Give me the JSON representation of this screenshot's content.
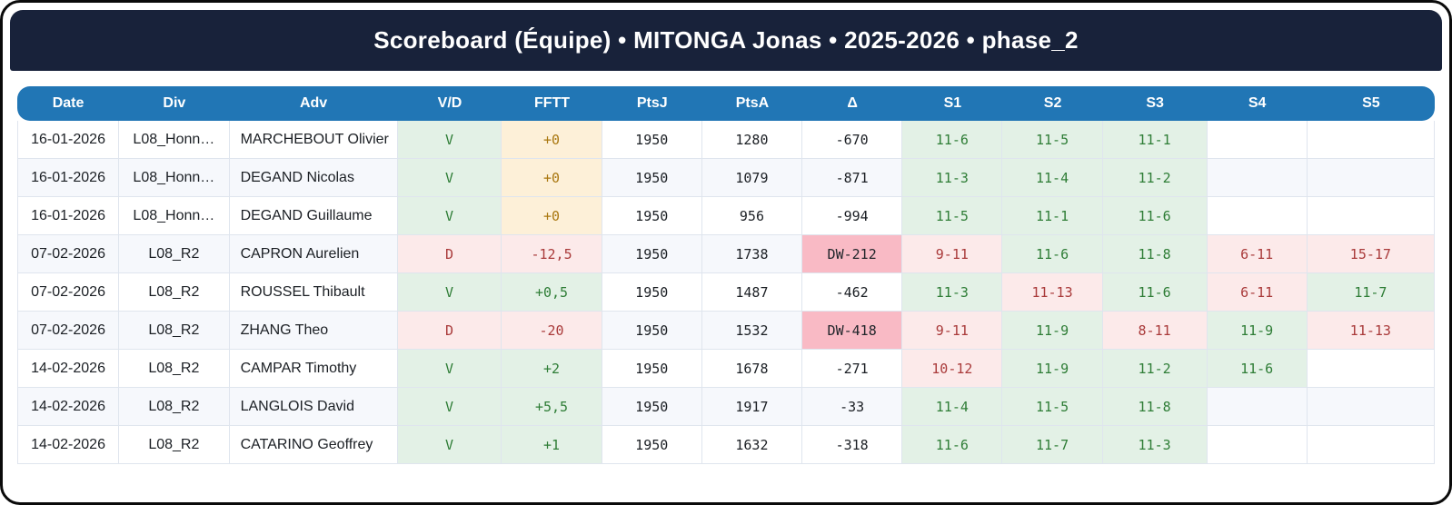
{
  "header": {
    "title": "Scoreboard (Équipe) • MITONGA Jonas • 2025-2026 • phase_2"
  },
  "colors": {
    "navy": "#18223a",
    "header_blue": "#2176b5",
    "text": "#1b1f24",
    "border_color": "#dfe5ee",
    "row_alt": "#f6f8fc",
    "win_bg": "#e3f1e6",
    "win_text": "#2e7d36",
    "loss_bg": "#fceaea",
    "loss_text": "#a93a3a",
    "warn_bg": "#fdf0d8",
    "warn_text": "#a9770f",
    "delta_defeat_bg": "#f9bac5",
    "delta_defeat_text": "#21262b"
  },
  "table": {
    "columns": [
      "Date",
      "Div",
      "Adv",
      "V/D",
      "FFTT",
      "PtsJ",
      "PtsA",
      "Δ",
      "S1",
      "S2",
      "S3",
      "S4",
      "S5"
    ],
    "rows": [
      {
        "date": "16-01-2026",
        "div": "L08_Honn…",
        "adv": "MARCHEBOUT Olivier",
        "vd": "V",
        "fftt": "+0",
        "ptsj": "1950",
        "ptsa": "1280",
        "delta": "-670",
        "sets": [
          "11-6",
          "11-5",
          "11-1",
          "",
          ""
        ]
      },
      {
        "date": "16-01-2026",
        "div": "L08_Honn…",
        "adv": "DEGAND Nicolas",
        "vd": "V",
        "fftt": "+0",
        "ptsj": "1950",
        "ptsa": "1079",
        "delta": "-871",
        "sets": [
          "11-3",
          "11-4",
          "11-2",
          "",
          ""
        ]
      },
      {
        "date": "16-01-2026",
        "div": "L08_Honn…",
        "adv": "DEGAND Guillaume",
        "vd": "V",
        "fftt": "+0",
        "ptsj": "1950",
        "ptsa": "956",
        "delta": "-994",
        "sets": [
          "11-5",
          "11-1",
          "11-6",
          "",
          ""
        ]
      },
      {
        "date": "07-02-2026",
        "div": "L08_R2",
        "adv": "CAPRON Aurelien",
        "vd": "D",
        "fftt": "-12,5",
        "ptsj": "1950",
        "ptsa": "1738",
        "delta": "DW-212",
        "sets": [
          "9-11",
          "11-6",
          "11-8",
          "6-11",
          "15-17"
        ]
      },
      {
        "date": "07-02-2026",
        "div": "L08_R2",
        "adv": "ROUSSEL Thibault",
        "vd": "V",
        "fftt": "+0,5",
        "ptsj": "1950",
        "ptsa": "1487",
        "delta": "-462",
        "sets": [
          "11-3",
          "11-13",
          "11-6",
          "6-11",
          "11-7"
        ]
      },
      {
        "date": "07-02-2026",
        "div": "L08_R2",
        "adv": "ZHANG Theo",
        "vd": "D",
        "fftt": "-20",
        "ptsj": "1950",
        "ptsa": "1532",
        "delta": "DW-418",
        "sets": [
          "9-11",
          "11-9",
          "8-11",
          "11-9",
          "11-13"
        ]
      },
      {
        "date": "14-02-2026",
        "div": "L08_R2",
        "adv": "CAMPAR Timothy",
        "vd": "V",
        "fftt": "+2",
        "ptsj": "1950",
        "ptsa": "1678",
        "delta": "-271",
        "sets": [
          "10-12",
          "11-9",
          "11-2",
          "11-6",
          ""
        ]
      },
      {
        "date": "14-02-2026",
        "div": "L08_R2",
        "adv": "LANGLOIS David",
        "vd": "V",
        "fftt": "+5,5",
        "ptsj": "1950",
        "ptsa": "1917",
        "delta": "-33",
        "sets": [
          "11-4",
          "11-5",
          "11-8",
          "",
          ""
        ]
      },
      {
        "date": "14-02-2026",
        "div": "L08_R2",
        "adv": "CATARINO Geoffrey",
        "vd": "V",
        "fftt": "+1",
        "ptsj": "1950",
        "ptsa": "1632",
        "delta": "-318",
        "sets": [
          "11-6",
          "11-7",
          "11-3",
          "",
          ""
        ]
      }
    ]
  }
}
